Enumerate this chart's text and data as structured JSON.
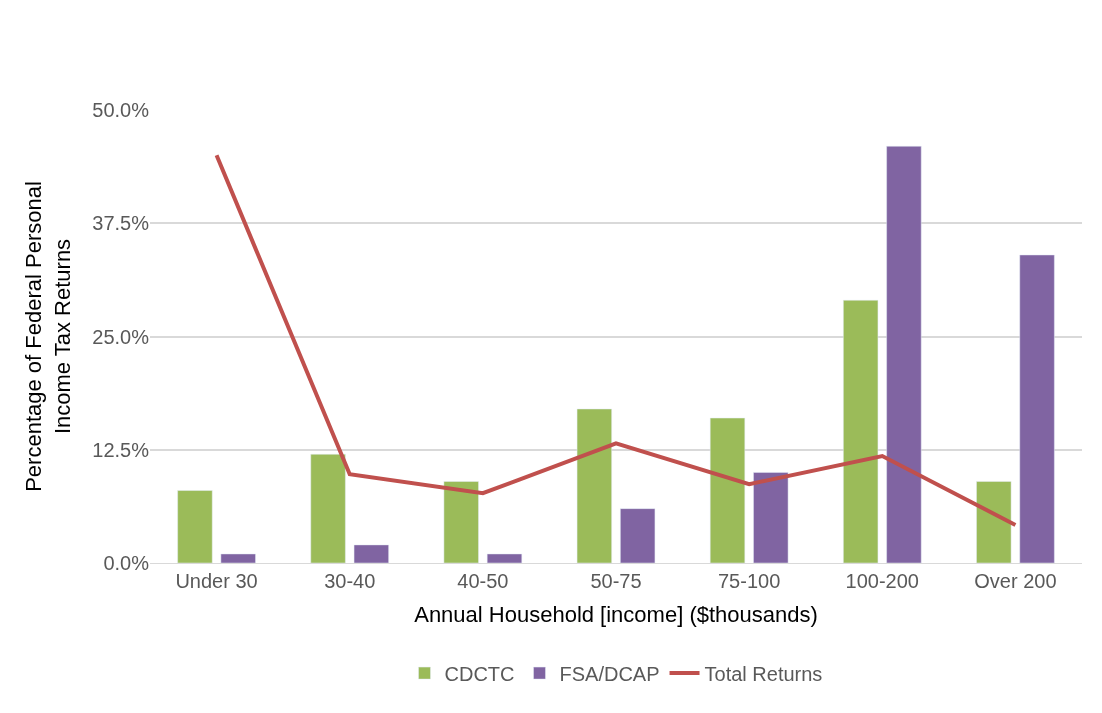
{
  "chart_data": {
    "type": "bar",
    "xlabel": "Annual Household [income] ($thousands)",
    "ylabel": "Percentage of Federal Personal Income Tax Returns",
    "categories": [
      "Under 30",
      "30-40",
      "40-50",
      "50-75",
      "75-100",
      "100-200",
      "Over 200"
    ],
    "series": [
      {
        "name": "CDCTC",
        "color": "#9bbb59",
        "values": [
          8,
          12,
          9,
          17,
          16,
          29,
          9
        ]
      },
      {
        "name": "FSA/DCAP",
        "color": "#8064a2",
        "values": [
          1,
          2,
          1,
          6,
          10,
          46,
          34
        ]
      },
      {
        "name": "Total Returns",
        "type": "line",
        "color": "#c0504d",
        "values": [
          45,
          9.8,
          7.7,
          13.2,
          8.7,
          11.8,
          4.2
        ]
      }
    ],
    "ylim": [
      0,
      50
    ],
    "yticks": [
      {
        "value": 0,
        "label": "0.0%"
      },
      {
        "value": 12.5,
        "label": "12.5%"
      },
      {
        "value": 25,
        "label": "25.0%"
      },
      {
        "value": 37.5,
        "label": "37.5%"
      },
      {
        "value": 50,
        "label": "50.0%"
      }
    ],
    "grid": "y",
    "legend": "bottom",
    "marker": "none",
    "line_style": "solid"
  }
}
